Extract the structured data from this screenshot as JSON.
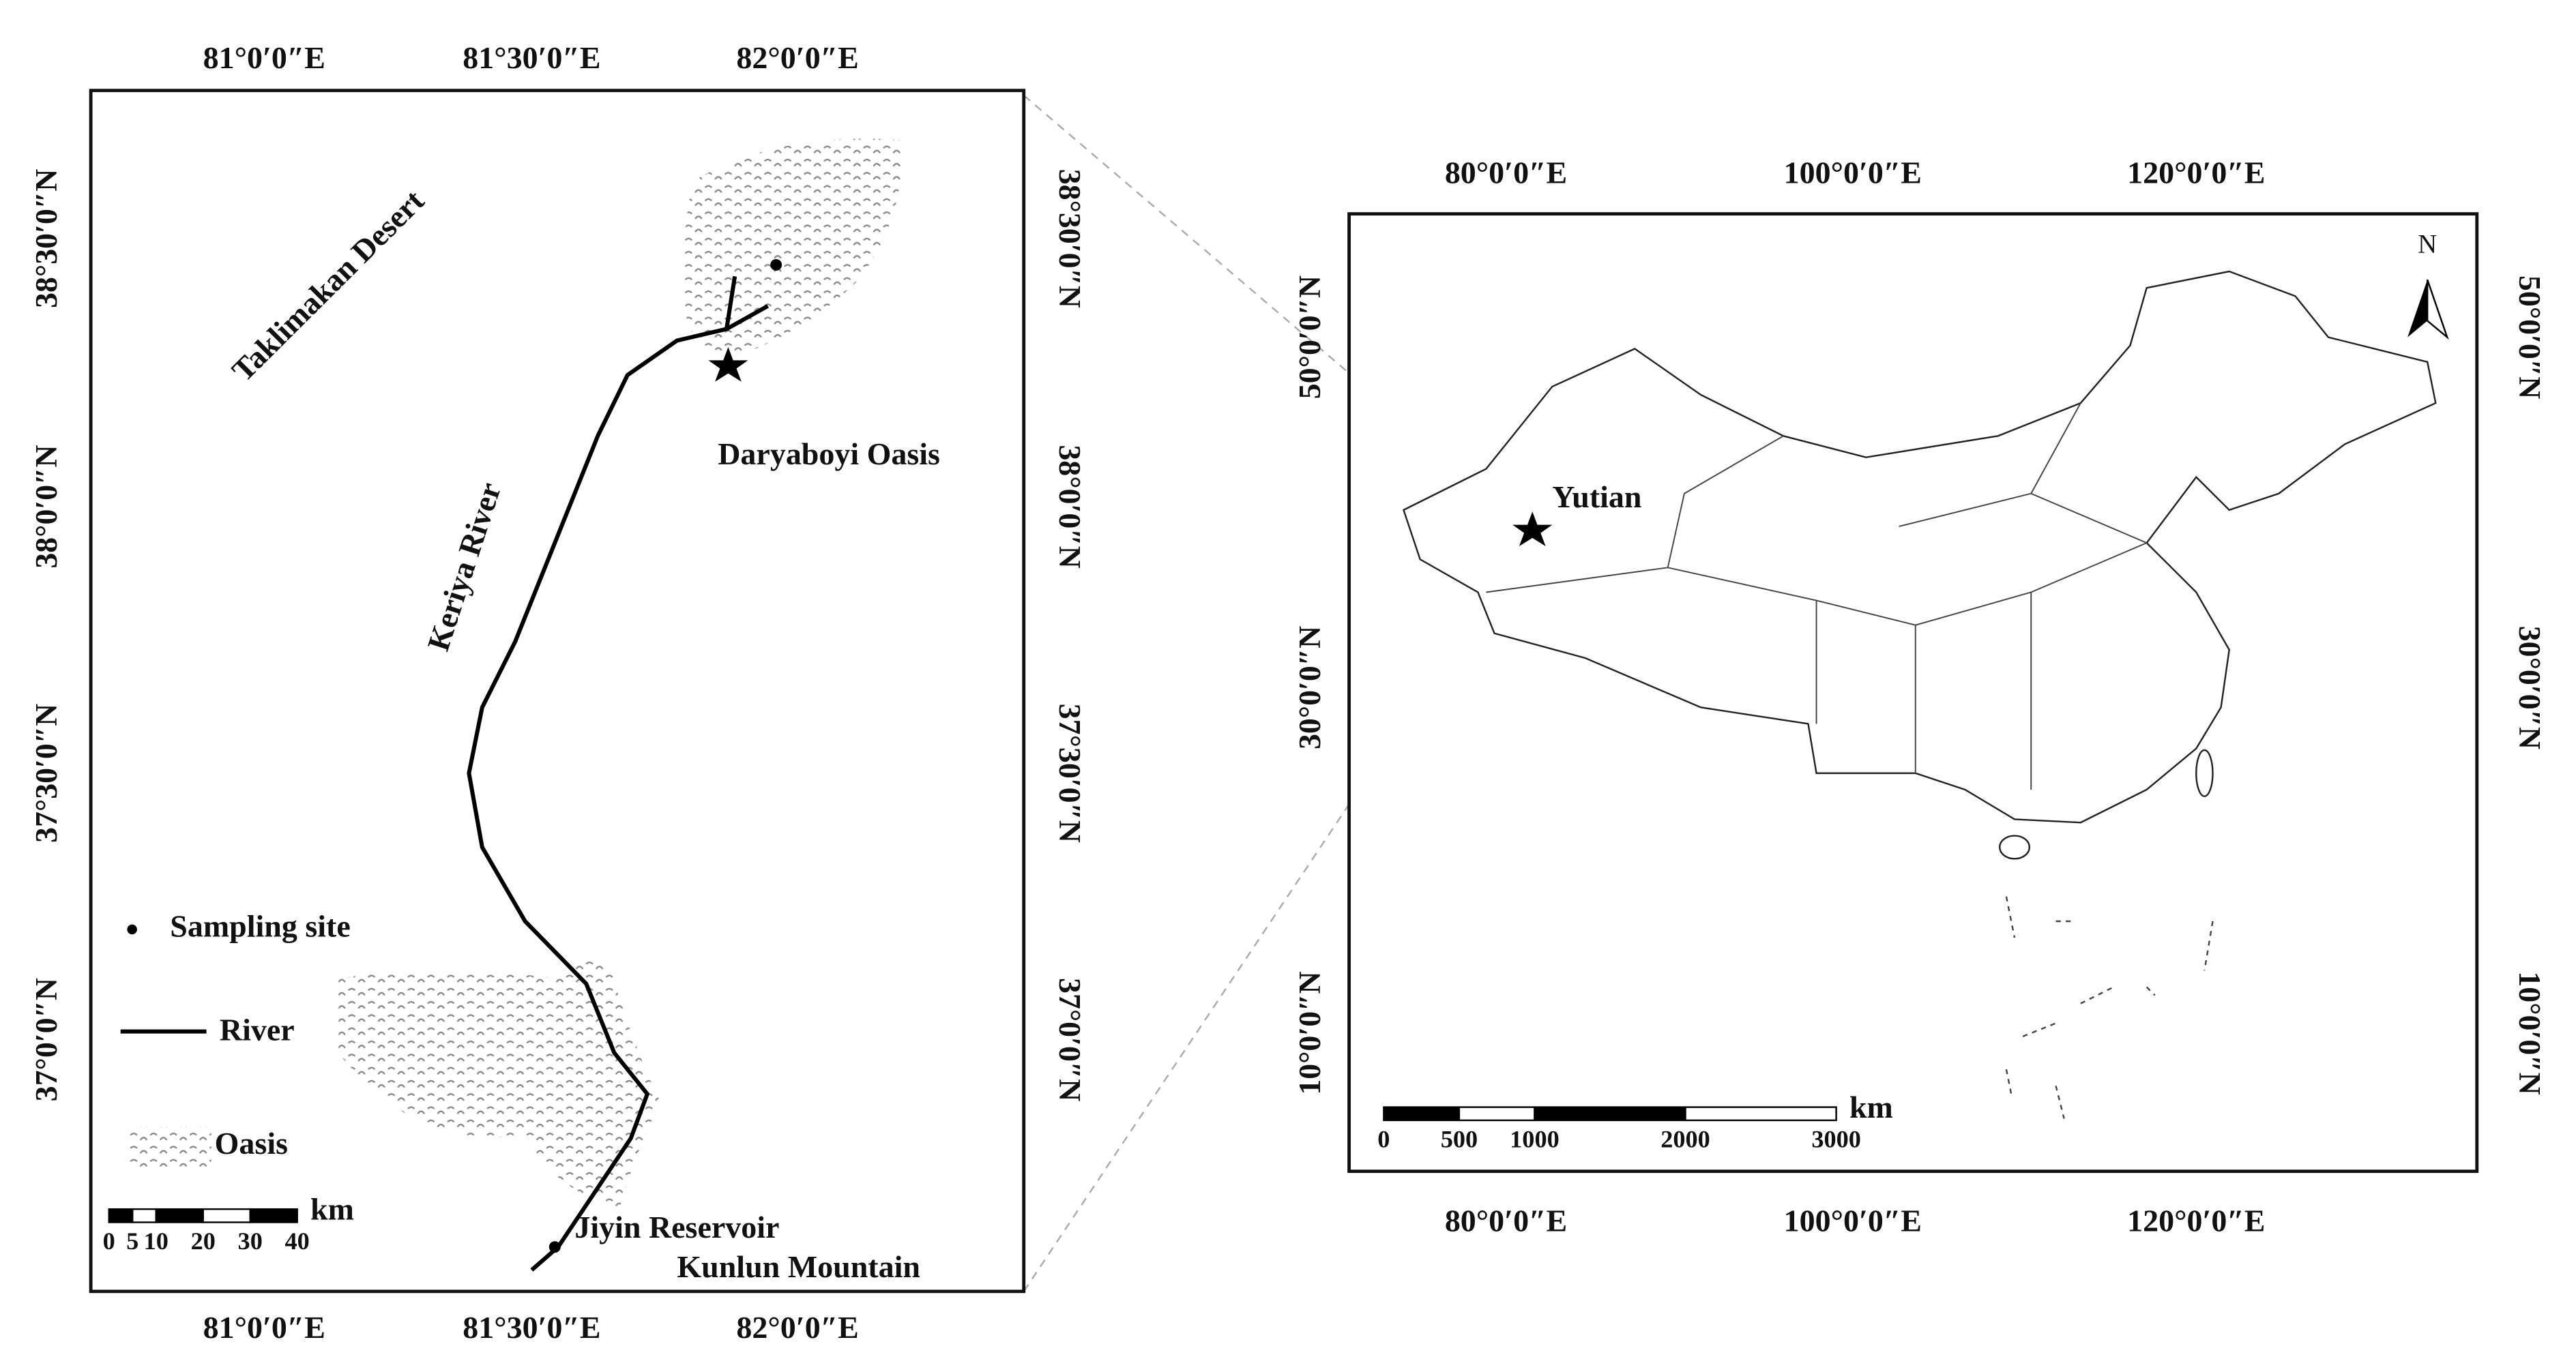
{
  "left_map": {
    "lon_labels": [
      "81°0′0″E",
      "81°30′0″E",
      "82°0′0″E"
    ],
    "lat_labels": [
      "38°30′0″N",
      "38°0′0″N",
      "37°30′0″N",
      "37°0′0″N"
    ],
    "labels": {
      "desert": "Taklimakan Desert",
      "river": "Keriya River",
      "oasis": "Daryaboyi Oasis",
      "reservoir": "Jiyin Reservoir",
      "mountain": "Kunlun Mountain"
    },
    "legend": [
      "Sampling site",
      "River",
      "Oasis"
    ],
    "scale_bar": {
      "ticks": [
        0,
        5,
        10,
        20,
        30,
        40
      ],
      "unit": "km"
    }
  },
  "right_map": {
    "lon_labels": [
      "80°0′0″E",
      "100°0′0″E",
      "120°0′0″E"
    ],
    "lat_labels": [
      "50°0′0″N",
      "30°0′0″N",
      "10°0′0″N"
    ],
    "place": "Yutian",
    "north": "N",
    "scale_bar": {
      "ticks": [
        0,
        500,
        1000,
        2000,
        3000
      ],
      "unit": "km"
    }
  }
}
